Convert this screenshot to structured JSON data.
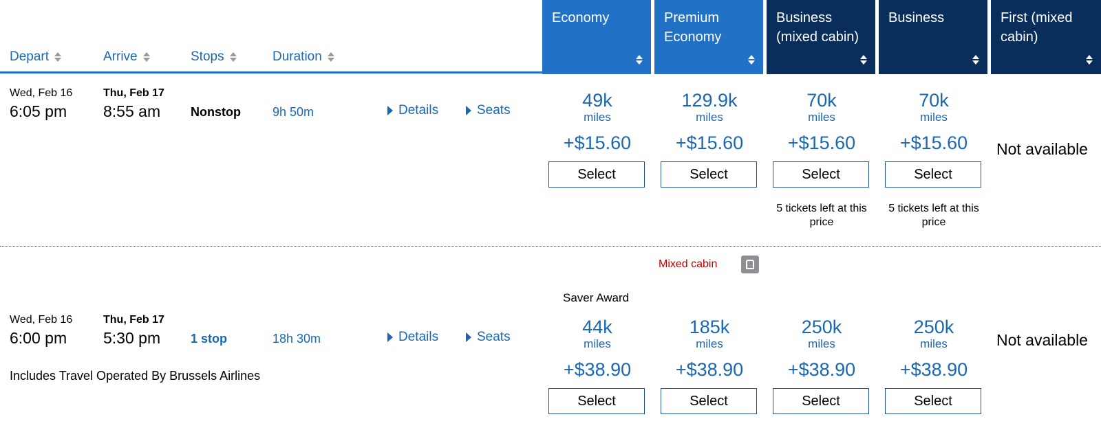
{
  "header": {
    "columns": [
      {
        "label": "Depart"
      },
      {
        "label": "Arrive"
      },
      {
        "label": "Stops"
      },
      {
        "label": "Duration"
      }
    ],
    "cabins": [
      {
        "label": "Economy"
      },
      {
        "label": "Premium Economy"
      },
      {
        "label": "Business (mixed cabin)"
      },
      {
        "label": "Business"
      },
      {
        "label": "First (mixed cabin)"
      }
    ]
  },
  "flights": [
    {
      "depart_date": "Wed, Feb 16",
      "depart_time": "6:05 pm",
      "arrive_date": "Thu, Feb 17",
      "arrive_time": "8:55 am",
      "stops": "Nonstop",
      "duration": "9h 50m",
      "details_label": "Details",
      "seats_label": "Seats",
      "fares": [
        {
          "miles": "49k",
          "unit": "miles",
          "tax": "+$15.60",
          "button": "Select"
        },
        {
          "miles": "129.9k",
          "unit": "miles",
          "tax": "+$15.60",
          "button": "Select"
        },
        {
          "miles": "70k",
          "unit": "miles",
          "tax": "+$15.60",
          "button": "Select",
          "note": "5 tickets left at this price"
        },
        {
          "miles": "70k",
          "unit": "miles",
          "tax": "+$15.60",
          "button": "Select",
          "note": "5 tickets left at this price"
        }
      ],
      "first": "Not available"
    },
    {
      "mixed_cabin": "Mixed cabin",
      "depart_date": "Wed, Feb 16",
      "depart_time": "6:00 pm",
      "arrive_date": "Thu, Feb 17",
      "arrive_time": "5:30 pm",
      "stops": "1 stop",
      "duration": "18h 30m",
      "details_label": "Details",
      "seats_label": "Seats",
      "operated_by": "Includes Travel Operated By Brussels Airlines",
      "saver_award": "Saver Award",
      "fares": [
        {
          "miles": "44k",
          "unit": "miles",
          "tax": "+$38.90",
          "button": "Select"
        },
        {
          "miles": "185k",
          "unit": "miles",
          "tax": "+$38.90",
          "button": "Select"
        },
        {
          "miles": "250k",
          "unit": "miles",
          "tax": "+$38.90",
          "button": "Select"
        },
        {
          "miles": "250k",
          "unit": "miles",
          "tax": "+$38.90",
          "button": "Select"
        }
      ],
      "first": "Not available"
    }
  ],
  "icons": [
    "sort-icon",
    "triangle-right-icon",
    "seat-icon"
  ],
  "colors": {
    "economy_header": "#2171c7",
    "business_header": "#0a2e5c",
    "link": "#1a67b3",
    "mixed_cabin": "#c00000"
  }
}
